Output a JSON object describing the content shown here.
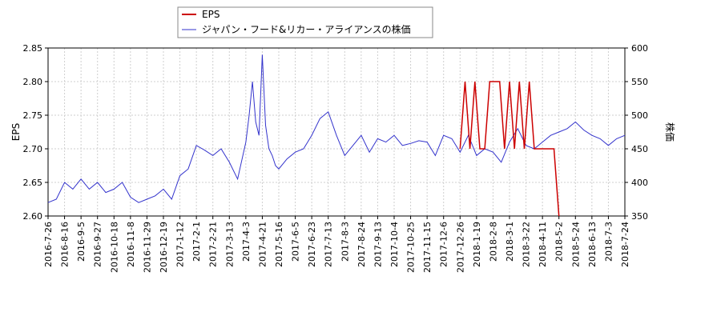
{
  "chart_data": {
    "type": "line",
    "legend": {
      "placement": "top-left",
      "entries": [
        {
          "name": "EPS",
          "color": "#cc0000"
        },
        {
          "name": "ジャパン・フード&リカー・アライアンスの株価",
          "color": "#3333cc"
        }
      ]
    },
    "xlabels": [
      "2016-7-26",
      "2016-8-16",
      "2016-9-5",
      "2016-9-27",
      "2016-10-18",
      "2016-11-8",
      "2016-11-29",
      "2016-12-19",
      "2017-1-12",
      "2017-2-1",
      "2017-2-21",
      "2017-3-13",
      "2017-4-3",
      "2017-4-21",
      "2017-5-16",
      "2017-6-5",
      "2017-6-23",
      "2017-7-13",
      "2017-8-3",
      "2017-8-24",
      "2017-9-13",
      "2017-10-4",
      "2017-10-25",
      "2017-11-15",
      "2017-12-6",
      "2017-12-26",
      "2018-1-19",
      "2018-2-8",
      "2018-3-1",
      "2018-3-22",
      "2018-4-11",
      "2018-5-2",
      "2018-5-24",
      "2018-6-13",
      "2018-7-3",
      "2018-7-24"
    ],
    "y_left": {
      "label": "EPS",
      "range": [
        2.6,
        2.85
      ],
      "ticks": [
        "2.60",
        "2.65",
        "2.70",
        "2.75",
        "2.80",
        "2.85"
      ]
    },
    "y_right": {
      "label": "株価",
      "range": [
        350,
        600
      ],
      "ticks": [
        "350",
        "400",
        "450",
        "500",
        "550",
        "600"
      ]
    },
    "grid": true,
    "series": [
      {
        "name": "EPS",
        "axis": "left",
        "color": "#cc0000",
        "x": [
          25.0,
          25.3,
          25.6,
          25.9,
          26.2,
          26.5,
          26.8,
          27.1,
          27.4,
          27.7,
          28.0,
          28.3,
          28.6,
          28.9,
          29.2,
          29.5,
          29.8,
          30.1,
          30.4,
          30.7,
          31.0
        ],
        "values": [
          2.7,
          2.8,
          2.7,
          2.8,
          2.7,
          2.7,
          2.8,
          2.8,
          2.8,
          2.7,
          2.8,
          2.7,
          2.8,
          2.7,
          2.8,
          2.7,
          2.7,
          2.7,
          2.7,
          2.7,
          2.6
        ]
      },
      {
        "name": "ジャパン・フード&リカー・アライアンスの株価",
        "axis": "right",
        "color": "#3333cc",
        "x": [
          0,
          0.5,
          1,
          1.5,
          2,
          2.5,
          3,
          3.5,
          4,
          4.5,
          5,
          5.5,
          6,
          6.5,
          7,
          7.5,
          8,
          8.5,
          9,
          9.5,
          10,
          10.5,
          11,
          11.5,
          12,
          12.2,
          12.4,
          12.6,
          12.8,
          13,
          13.2,
          13.4,
          13.6,
          13.8,
          14,
          14.5,
          15,
          15.5,
          16,
          16.5,
          17,
          17.5,
          18,
          18.5,
          19,
          19.5,
          20,
          20.5,
          21,
          21.5,
          22,
          22.5,
          23,
          23.5,
          24,
          24.5,
          25,
          25.5,
          26,
          26.5,
          27,
          27.5,
          28,
          28.5,
          29,
          29.5,
          30,
          30.5,
          31,
          31.5,
          32,
          32.5,
          33,
          33.5,
          34,
          34.5,
          35
        ],
        "values": [
          370,
          375,
          400,
          390,
          405,
          390,
          400,
          385,
          390,
          400,
          378,
          370,
          375,
          380,
          390,
          375,
          410,
          420,
          455,
          448,
          440,
          450,
          430,
          405,
          460,
          500,
          550,
          490,
          470,
          590,
          485,
          450,
          440,
          425,
          420,
          435,
          445,
          450,
          470,
          495,
          505,
          470,
          440,
          455,
          470,
          445,
          465,
          460,
          470,
          455,
          458,
          462,
          460,
          440,
          470,
          465,
          445,
          470,
          440,
          450,
          445,
          430,
          460,
          480,
          455,
          450,
          460,
          470,
          475,
          480,
          490,
          478,
          470,
          465,
          455,
          465,
          470
        ]
      }
    ]
  }
}
